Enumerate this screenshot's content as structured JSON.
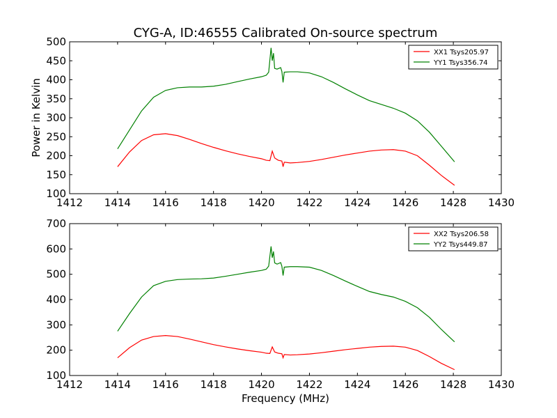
{
  "chart_data": [
    {
      "type": "line",
      "title": "CYG-A, ID:46555 Calibrated On-source spectrum",
      "xlabel": "",
      "ylabel": "Power in Kelvin",
      "xlim": [
        1412,
        1430
      ],
      "ylim": [
        100,
        500
      ],
      "xticks": [
        "1412",
        "1414",
        "1416",
        "1418",
        "1420",
        "1422",
        "1424",
        "1426",
        "1428",
        "1430"
      ],
      "yticks": [
        "100",
        "150",
        "200",
        "250",
        "300",
        "350",
        "400",
        "450",
        "500"
      ],
      "grid": false,
      "legend_position": "top-right",
      "series": [
        {
          "name": "XX1 Tsys205.97",
          "color": "#ff0000",
          "x": [
            1414,
            1414.5,
            1415,
            1415.5,
            1416,
            1416.5,
            1417,
            1417.5,
            1418,
            1418.5,
            1419,
            1419.5,
            1420,
            1420.2,
            1420.35,
            1420.45,
            1420.55,
            1420.7,
            1420.85,
            1420.9,
            1420.95,
            1421.2,
            1421.5,
            1422,
            1422.5,
            1423,
            1423.5,
            1424,
            1424.5,
            1425,
            1425.5,
            1426,
            1426.5,
            1427,
            1427.5,
            1428.05
          ],
          "y": [
            171,
            210,
            240,
            255,
            258,
            253,
            243,
            232,
            222,
            213,
            205,
            198,
            192,
            188,
            187,
            212,
            194,
            188,
            186,
            171,
            183,
            181,
            182,
            185,
            190,
            196,
            202,
            207,
            212,
            215,
            216,
            212,
            200,
            175,
            148,
            122
          ]
        },
        {
          "name": "YY1 Tsys356.74",
          "color": "#008000",
          "x": [
            1414,
            1414.5,
            1415,
            1415.5,
            1416,
            1416.5,
            1417,
            1417.5,
            1418,
            1418.5,
            1419,
            1419.5,
            1420,
            1420.2,
            1420.3,
            1420.4,
            1420.45,
            1420.5,
            1420.55,
            1420.65,
            1420.8,
            1420.85,
            1420.9,
            1420.95,
            1421.2,
            1421.5,
            1422,
            1422.5,
            1423,
            1423.5,
            1424,
            1424.5,
            1425,
            1425.5,
            1426,
            1426.5,
            1427,
            1427.5,
            1428.05
          ],
          "y": [
            218,
            268,
            318,
            354,
            372,
            379,
            381,
            381,
            383,
            388,
            395,
            402,
            408,
            412,
            420,
            484,
            450,
            470,
            430,
            428,
            432,
            422,
            393,
            420,
            421,
            421,
            418,
            408,
            393,
            376,
            360,
            345,
            335,
            325,
            312,
            292,
            262,
            225,
            184
          ]
        }
      ]
    },
    {
      "type": "line",
      "title": "",
      "xlabel": "Frequency (MHz)",
      "ylabel": "",
      "xlim": [
        1412,
        1430
      ],
      "ylim": [
        100,
        700
      ],
      "xticks": [
        "1412",
        "1414",
        "1416",
        "1418",
        "1420",
        "1422",
        "1424",
        "1426",
        "1428",
        "1430"
      ],
      "yticks": [
        "100",
        "200",
        "300",
        "400",
        "500",
        "600",
        "700"
      ],
      "grid": false,
      "legend_position": "top-right",
      "series": [
        {
          "name": "XX2 Tsys206.58",
          "color": "#ff0000",
          "x": [
            1414,
            1414.5,
            1415,
            1415.5,
            1416,
            1416.5,
            1417,
            1417.5,
            1418,
            1418.5,
            1419,
            1419.5,
            1420,
            1420.2,
            1420.35,
            1420.45,
            1420.55,
            1420.7,
            1420.85,
            1420.9,
            1420.95,
            1421.2,
            1421.5,
            1422,
            1422.5,
            1423,
            1423.5,
            1424,
            1424.5,
            1425,
            1425.5,
            1426,
            1426.5,
            1427,
            1427.5,
            1428.05
          ],
          "y": [
            170,
            210,
            240,
            254,
            258,
            254,
            244,
            233,
            222,
            213,
            205,
            198,
            192,
            188,
            187,
            213,
            193,
            188,
            186,
            170,
            183,
            181,
            182,
            185,
            190,
            196,
            202,
            207,
            212,
            215,
            216,
            212,
            199,
            175,
            148,
            123
          ]
        },
        {
          "name": "YY2 Tsys449.87",
          "color": "#008000",
          "x": [
            1414,
            1414.5,
            1415,
            1415.5,
            1416,
            1416.5,
            1417,
            1417.5,
            1418,
            1418.5,
            1419,
            1419.5,
            1420,
            1420.2,
            1420.3,
            1420.4,
            1420.45,
            1420.5,
            1420.55,
            1420.65,
            1420.8,
            1420.85,
            1420.9,
            1420.95,
            1421.2,
            1421.5,
            1422,
            1422.5,
            1423,
            1423.5,
            1424,
            1424.5,
            1425,
            1425.5,
            1426,
            1426.5,
            1427,
            1427.5,
            1428.05
          ],
          "y": [
            275,
            345,
            410,
            455,
            472,
            479,
            481,
            482,
            485,
            492,
            500,
            508,
            515,
            520,
            532,
            610,
            565,
            590,
            545,
            540,
            546,
            532,
            495,
            528,
            530,
            530,
            528,
            515,
            495,
            473,
            452,
            432,
            420,
            410,
            393,
            368,
            330,
            282,
            233
          ]
        }
      ]
    }
  ]
}
